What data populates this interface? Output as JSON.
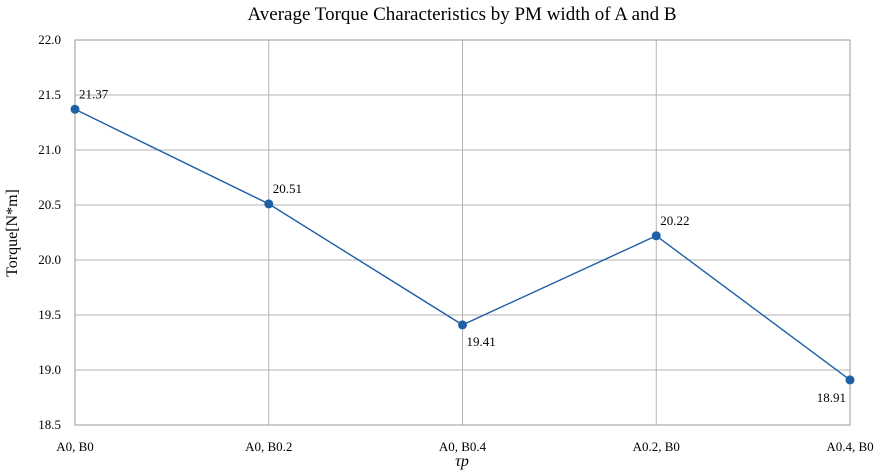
{
  "chart_data": {
    "type": "line",
    "title": "Average Torque Characteristics by PM width of A and B",
    "xlabel": "τp",
    "ylabel": "Torque[N*m]",
    "categories": [
      "A0, B0",
      "A0, B0.2",
      "A0, B0.4",
      "A0.2, B0",
      "A0.4, B0"
    ],
    "series": [
      {
        "values": [
          21.37,
          20.51,
          19.41,
          20.22,
          18.91
        ]
      }
    ],
    "data_labels": [
      "21.37",
      "20.51",
      "19.41",
      "20.22",
      "18.91"
    ],
    "ylim": [
      18.5,
      22.0
    ],
    "yticks": [
      "18.5",
      "19.0",
      "19.5",
      "20.0",
      "20.5",
      "21.0",
      "21.5",
      "22.0"
    ],
    "grid": true,
    "colors": {
      "line": "#1f5fa6",
      "grid": "#b3b3b3",
      "frame": "#999999"
    }
  }
}
